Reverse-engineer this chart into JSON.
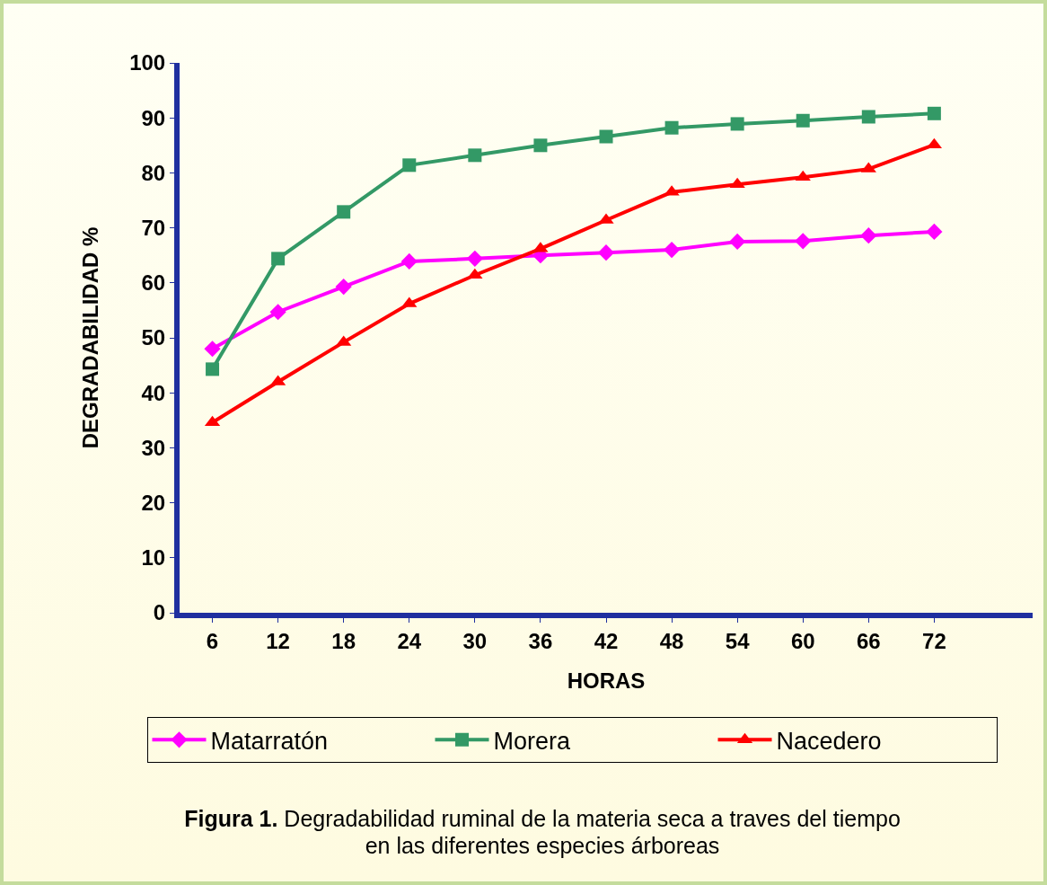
{
  "chart_data": {
    "type": "line",
    "xlabel": "HORAS",
    "ylabel": "DEGRADABILIDAD %",
    "categories": [
      "6",
      "12",
      "18",
      "24",
      "30",
      "36",
      "42",
      "48",
      "54",
      "60",
      "66",
      "72",
      null
    ],
    "series": [
      {
        "name": "Matarratón",
        "color": "#ff00ff",
        "marker": "diamond",
        "values": [
          48.0,
          54.7,
          59.3,
          63.9,
          64.4,
          65.0,
          65.5,
          66.0,
          67.5,
          67.6,
          68.6,
          69.3,
          null
        ]
      },
      {
        "name": "Morera",
        "color": "#339966",
        "marker": "square",
        "values": [
          44.3,
          64.4,
          72.9,
          81.4,
          83.2,
          85.0,
          86.6,
          88.2,
          88.9,
          89.5,
          90.2,
          90.8,
          null
        ]
      },
      {
        "name": "Nacedero",
        "color": "#ff0000",
        "marker": "triangle",
        "values": [
          34.6,
          42.0,
          49.2,
          56.2,
          61.4,
          66.2,
          71.4,
          76.5,
          77.9,
          79.2,
          80.7,
          85.1,
          null
        ]
      }
    ],
    "ylim": [
      0,
      100
    ],
    "yticks": [
      0,
      10,
      20,
      30,
      40,
      50,
      60,
      70,
      80,
      90,
      100
    ],
    "grid": false,
    "legend": "bottom",
    "line_style": "solid",
    "annotations": [
      "Figura 1.",
      "Degradabilidad ruminal de la materia seca a traves del tiempo en las diferentes especies árboreas"
    ]
  }
}
